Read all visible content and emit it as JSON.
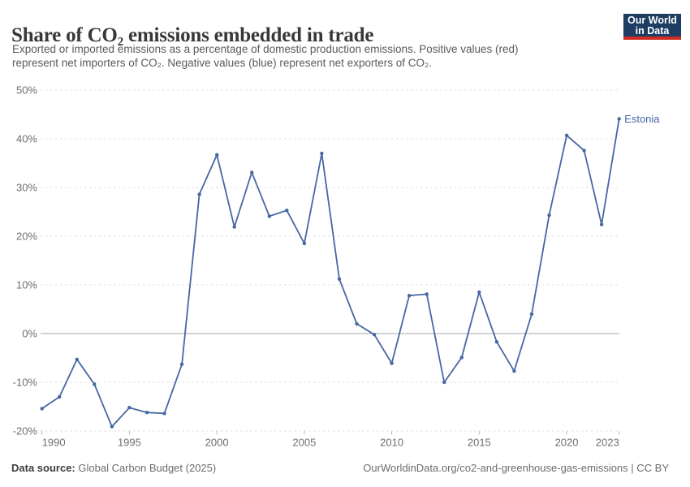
{
  "header": {
    "title": "Share of CO₂ emissions embedded in trade",
    "subtitle_lines": [
      "Exported or imported emissions as a percentage of domestic production emissions. Positive values (red)",
      "represent net importers of CO₂. Negative values (blue) represent net exporters of CO₂."
    ],
    "logo": {
      "line1": "Our World",
      "line2": "in Data",
      "bg_color": "#1d3d63",
      "stripe_color": "#cf2d24"
    }
  },
  "chart_data": {
    "type": "line",
    "title": "Share of CO₂ emissions embedded in trade",
    "entity": "Estonia",
    "unit": "%",
    "x": [
      1990,
      1991,
      1992,
      1993,
      1994,
      1995,
      1996,
      1997,
      1998,
      1999,
      2000,
      2001,
      2002,
      2003,
      2004,
      2005,
      2006,
      2007,
      2008,
      2009,
      2010,
      2011,
      2012,
      2013,
      2014,
      2015,
      2016,
      2017,
      2018,
      2019,
      2020,
      2021,
      2022,
      2023
    ],
    "values": [
      -15.4,
      -13.0,
      -5.3,
      -10.4,
      -19.1,
      -15.2,
      -16.2,
      -16.4,
      -6.3,
      28.6,
      36.7,
      21.9,
      33.1,
      24.1,
      25.3,
      18.5,
      37.0,
      11.2,
      2.0,
      -0.2,
      -6.1,
      7.8,
      8.1,
      -10.0,
      -4.9,
      8.5,
      -1.7,
      -7.7,
      4.0,
      24.3,
      40.7,
      37.6,
      22.4,
      44.1
    ],
    "xticks": [
      1990,
      1995,
      2000,
      2005,
      2010,
      2015,
      2020,
      2023
    ],
    "yticks": [
      50,
      40,
      30,
      20,
      10,
      0,
      -10,
      -20
    ],
    "ylim": [
      -20,
      50
    ],
    "xlabel": "",
    "ylabel": "",
    "grid": true,
    "legend_position": "end-of-line",
    "line_color": "#4766a4",
    "grid_color": "#dcdcdc",
    "zero_line_color": "#a6a6a6",
    "axis_label_color": "#6e6e6e"
  },
  "footer": {
    "source_label": "Data source:",
    "source_value": "Global Carbon Budget (2025)",
    "right_text": "OurWorldinData.org/co2-and-greenhouse-gas-emissions | CC BY"
  }
}
